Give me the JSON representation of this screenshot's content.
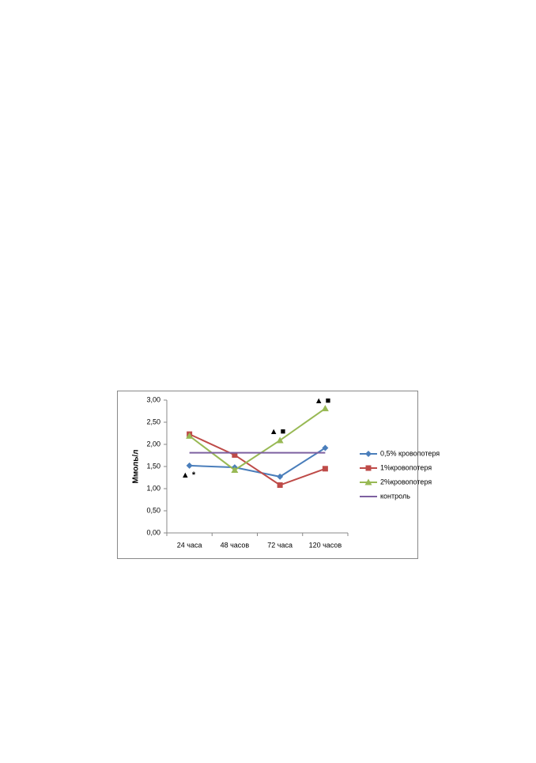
{
  "chart_data": {
    "type": "line",
    "ylabel": "Ммоль/л",
    "categories": [
      "24 часа",
      "48 часов",
      "72 часа",
      "120 часов"
    ],
    "series": [
      {
        "name": "0,5% кровопотеря",
        "color": "#4a7ebb",
        "marker": "diamond",
        "values": [
          1.52,
          1.48,
          1.27,
          1.92
        ]
      },
      {
        "name": "1%кровопотеря",
        "color": "#be4b48",
        "marker": "square",
        "values": [
          2.23,
          1.76,
          1.08,
          1.45
        ]
      },
      {
        "name": "2%кровопотеря",
        "color": "#98b954",
        "marker": "triangle",
        "values": [
          2.19,
          1.42,
          2.09,
          2.81
        ]
      },
      {
        "name": "контроль",
        "color": "#7d60a0",
        "marker": "none",
        "values": [
          1.81,
          1.81,
          1.81,
          1.81
        ]
      }
    ],
    "ylim": [
      0,
      3
    ],
    "yticks": [
      {
        "value": 0,
        "label": "0,00"
      },
      {
        "value": 0.5,
        "label": "0,50"
      },
      {
        "value": 1,
        "label": "1,00"
      },
      {
        "value": 1.5,
        "label": "1,50"
      },
      {
        "value": 2,
        "label": "2,00"
      },
      {
        "value": 2.5,
        "label": "2,50"
      },
      {
        "value": 3,
        "label": "3,00"
      }
    ],
    "annotations": [
      "▲ *",
      "▲ ■",
      "▲ ■"
    ],
    "legend": "right"
  }
}
